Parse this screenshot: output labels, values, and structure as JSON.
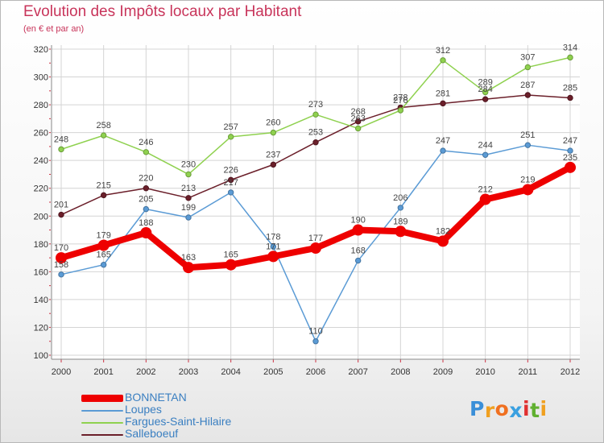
{
  "header": {
    "title": "Evolution des Impôts locaux par Habitant",
    "subtitle": "(en € et par an)"
  },
  "colors": {
    "BONNETAN": "#ee0000",
    "Loupes": "#5b9bd5",
    "Fargues-Saint-Hilaire": "#8fd14f",
    "Salleboeuf": "#6b1f2a",
    "title": "#c8345a",
    "axis_text": "#333333"
  },
  "chart_data": {
    "type": "line",
    "x": [
      "2000",
      "2001",
      "2002",
      "2003",
      "2004",
      "2005",
      "2006",
      "2007",
      "2008",
      "2009",
      "2010",
      "2011",
      "2012"
    ],
    "ylim": [
      100,
      320
    ],
    "yticks": [
      100,
      120,
      140,
      160,
      180,
      200,
      220,
      240,
      260,
      280,
      300,
      320
    ],
    "grid": true,
    "legend_position": "bottom-left",
    "series": [
      {
        "name": "BONNETAN",
        "values": [
          170,
          179,
          188,
          163,
          165,
          171,
          177,
          190,
          189,
          182,
          212,
          219,
          235
        ]
      },
      {
        "name": "Loupes",
        "values": [
          158,
          165,
          205,
          199,
          217,
          178,
          110,
          168,
          206,
          247,
          244,
          251,
          247
        ]
      },
      {
        "name": "Fargues-Saint-Hilaire",
        "values": [
          248,
          258,
          246,
          230,
          257,
          260,
          273,
          263,
          276,
          312,
          289,
          307,
          314
        ]
      },
      {
        "name": "Salleboeuf",
        "values": [
          201,
          215,
          220,
          213,
          226,
          237,
          253,
          268,
          278,
          281,
          284,
          287,
          285
        ]
      }
    ]
  },
  "logo": {
    "letters": [
      "P",
      "r",
      "o",
      "x",
      "i",
      "t",
      "i"
    ],
    "colors": [
      "#3a8fd8",
      "#f0a020",
      "#f07020",
      "#3aa0e0",
      "#e03030",
      "#60b030",
      "#f0a020"
    ]
  }
}
